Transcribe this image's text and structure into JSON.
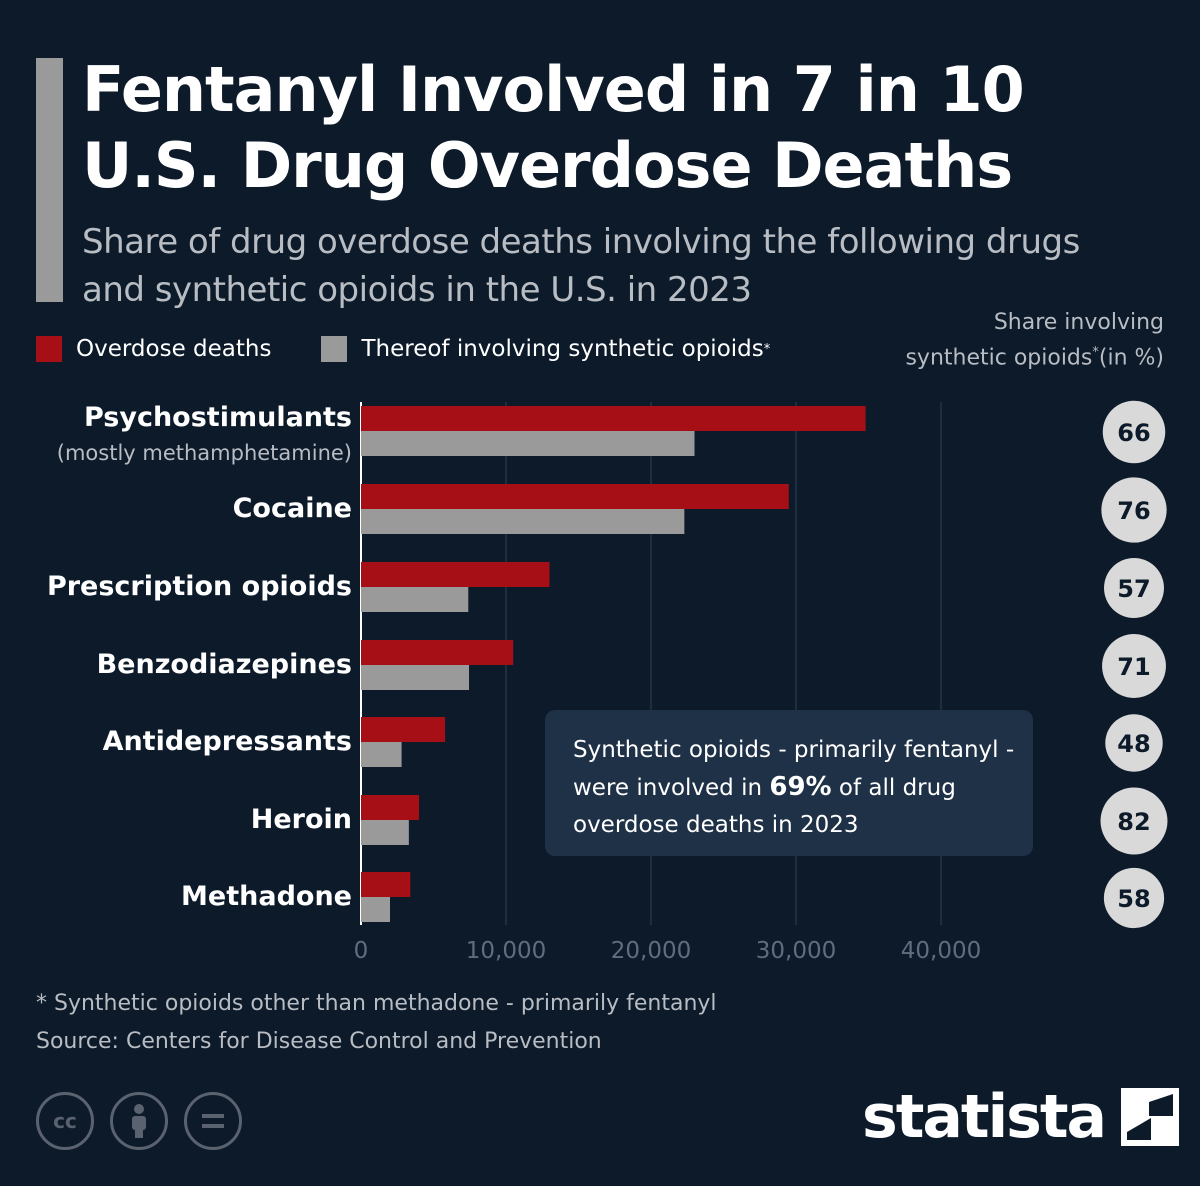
{
  "header": {
    "title_line1": "Fentanyl Involved in 7 in 10",
    "title_line2": "U.S. Drug Overdose Deaths",
    "subtitle_line1": "Share of drug overdose deaths involving the following drugs",
    "subtitle_line2": "and synthetic opioids in the U.S. in 2023"
  },
  "legend": {
    "item1": "Overdose deaths",
    "item2": "Thereof involving synthetic opioids",
    "asterisk": "*"
  },
  "share_header": {
    "line1": "Share involving",
    "line2a": "synthetic opioids",
    "asterisk": "*",
    "line2b": "(in %)"
  },
  "chart_data": {
    "type": "bar",
    "orientation": "horizontal",
    "categories": [
      "Psychostimulants",
      "Cocaine",
      "Prescription opioids",
      "Benzodiazepines",
      "Antidepressants",
      "Heroin",
      "Methadone"
    ],
    "category_sublabels": [
      "(mostly methamphetamine)",
      "",
      "",
      "",
      "",
      "",
      ""
    ],
    "series": [
      {
        "name": "Overdose deaths",
        "color": "#a50f15",
        "values": [
          34800,
          29500,
          13000,
          10500,
          5800,
          4000,
          3400
        ]
      },
      {
        "name": "Thereof involving synthetic opioids",
        "color": "#9a9a9a",
        "values": [
          23000,
          22300,
          7400,
          7450,
          2800,
          3300,
          2000
        ]
      }
    ],
    "share_percent": [
      66,
      76,
      57,
      71,
      48,
      82,
      58
    ],
    "xlim": [
      0,
      45000
    ],
    "xticks": [
      0,
      10000,
      20000,
      30000,
      40000
    ],
    "xtick_labels": [
      "0",
      "10,000",
      "20,000",
      "30,000",
      "40,000"
    ],
    "grid": true,
    "legend_position": "top-left"
  },
  "callout": {
    "text_before": "Synthetic opioids - primarily fentanyl - were involved in ",
    "highlight": "69%",
    "text_after": " of all drug overdose deaths in 2023"
  },
  "footnote": {
    "line1": "* Synthetic opioids other than methadone - primarily fentanyl",
    "line2": "Source: Centers for Disease Control and Prevention"
  },
  "license_icons": [
    "cc-icon",
    "attribution-icon",
    "no-derivatives-icon"
  ],
  "brand": {
    "name": "statista"
  },
  "colors": {
    "background": "#0c1a2a",
    "accent_red": "#a50f15",
    "gray": "#9a9a9a",
    "callout_bg": "#1f3147",
    "bubble": "#d9d9d9"
  }
}
